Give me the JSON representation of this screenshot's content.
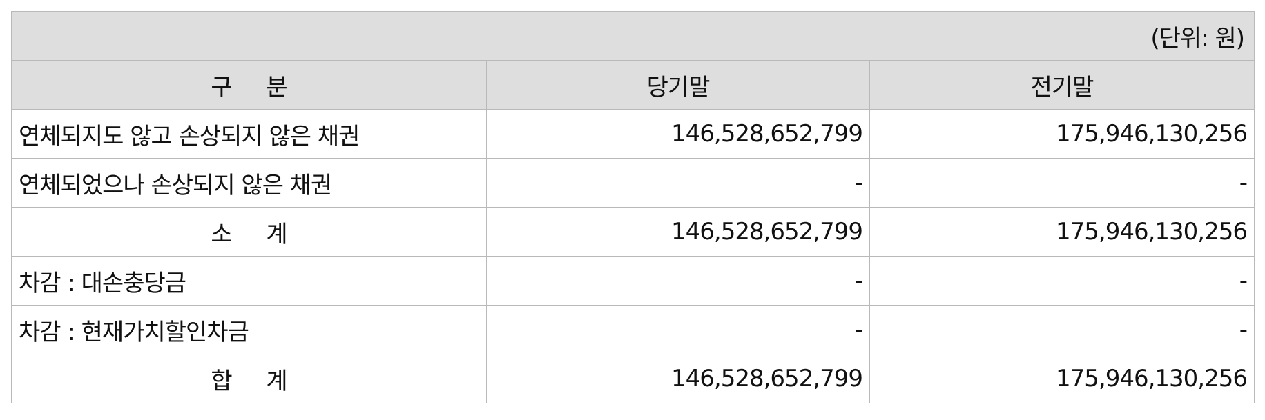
{
  "unit": "(단위: 원)",
  "headers": {
    "category": "구 분",
    "current": "당기말",
    "previous": "전기말"
  },
  "rows": [
    {
      "label": "연체되지도 않고 손상되지 않은 채권",
      "current": "146,528,652,799",
      "previous": "175,946,130,256"
    },
    {
      "label": "연체되었으나 손상되지 않은 채권",
      "current": "-",
      "previous": "-"
    },
    {
      "label": "소 계",
      "current": "146,528,652,799",
      "previous": "175,946,130,256"
    },
    {
      "label": "차감 : 대손충당금",
      "current": "-",
      "previous": "-"
    },
    {
      "label": "차감 : 현재가치할인차금",
      "current": "-",
      "previous": "-"
    },
    {
      "label": "합 계",
      "current": "146,528,652,799",
      "previous": "175,946,130,256"
    }
  ]
}
